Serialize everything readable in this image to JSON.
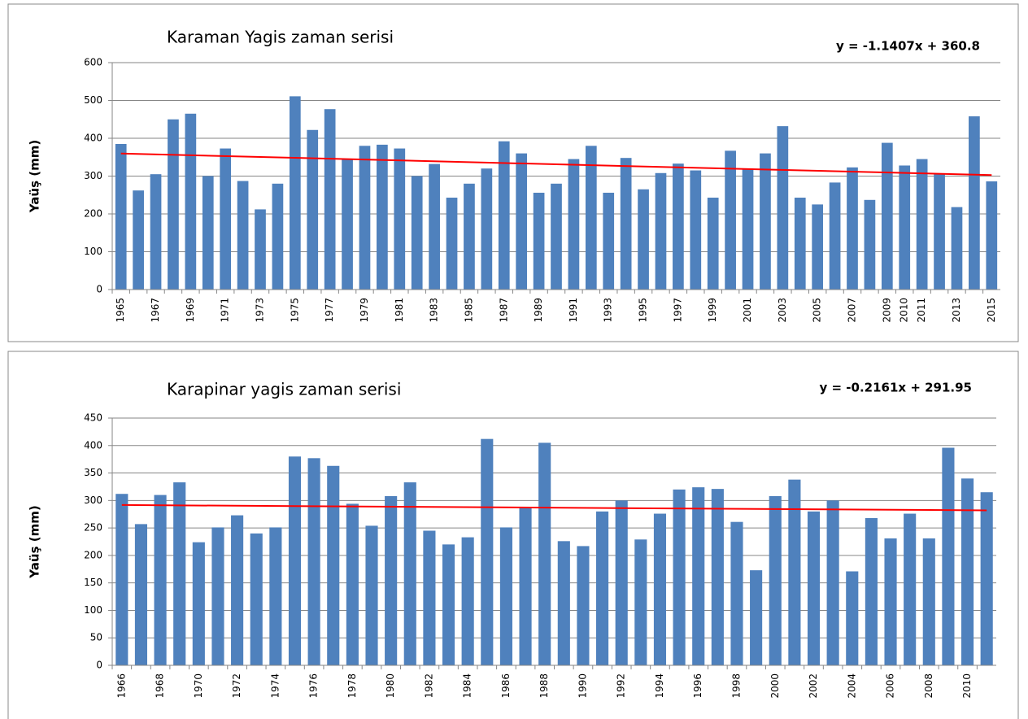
{
  "chart_data": [
    {
      "type": "bar",
      "title": "Karaman Yagis zaman serisi",
      "y_label": "Yaüş (mm)",
      "categories": [
        "1965",
        null,
        "1967",
        null,
        "1969",
        null,
        "1971",
        null,
        "1973",
        null,
        "1975",
        null,
        "1977",
        null,
        "1979",
        null,
        "1981",
        null,
        "1983",
        null,
        "1985",
        null,
        "1987",
        null,
        "1989",
        null,
        "1991",
        null,
        "1993",
        null,
        "1995",
        null,
        "1997",
        null,
        "1999",
        null,
        "2001",
        null,
        "2003",
        null,
        "2005",
        null,
        "2007",
        null,
        "2009",
        "2010",
        "2011",
        null,
        "2013",
        null,
        "2015"
      ],
      "values": [
        385,
        262,
        305,
        450,
        465,
        300,
        373,
        287,
        212,
        280,
        511,
        422,
        477,
        345,
        380,
        383,
        373,
        300,
        332,
        243,
        280,
        320,
        392,
        360,
        256,
        280,
        345,
        380,
        256,
        348,
        265,
        308,
        333,
        315,
        243,
        367,
        320,
        360,
        432,
        243,
        225,
        283,
        323,
        237,
        388,
        328,
        345,
        305,
        218,
        458,
        286
      ],
      "color": "#4f81bd",
      "ylim": [
        0,
        600
      ],
      "yticks": [
        0,
        100,
        200,
        300,
        400,
        500,
        600
      ],
      "grid": true,
      "trendline": {
        "label": "y = -1.1407x + 360.8",
        "slope": -1.1407,
        "intercept": 360.8,
        "color": "#ff0000"
      }
    },
    {
      "type": "bar",
      "title": "Karapinar yagis zaman serisi",
      "y_label": "Yaüş (mm)",
      "categories": [
        "1966",
        null,
        "1968",
        null,
        "1970",
        null,
        "1972",
        null,
        "1974",
        null,
        "1976",
        null,
        "1978",
        null,
        "1980",
        null,
        "1982",
        null,
        "1984",
        null,
        "1986",
        null,
        "1988",
        null,
        "1990",
        null,
        "1992",
        null,
        "1994",
        null,
        "1996",
        null,
        "1998",
        null,
        "2000",
        null,
        "2002",
        null,
        "2004",
        null,
        "2006",
        null,
        "2008",
        null,
        "2010",
        null
      ],
      "values": [
        312,
        257,
        310,
        333,
        224,
        251,
        273,
        240,
        251,
        380,
        377,
        363,
        294,
        254,
        308,
        333,
        245,
        220,
        233,
        412,
        251,
        287,
        405,
        226,
        217,
        280,
        300,
        229,
        276,
        320,
        324,
        321,
        261,
        173,
        308,
        338,
        280,
        300,
        171,
        268,
        231,
        276,
        231,
        396,
        340,
        315
      ],
      "color": "#4f81bd",
      "ylim": [
        0,
        450
      ],
      "yticks": [
        0,
        50,
        100,
        150,
        200,
        250,
        300,
        350,
        400,
        450
      ],
      "grid": true,
      "trendline": {
        "label": "y = -0.2161x + 291.95",
        "slope": -0.2161,
        "intercept": 291.95,
        "color": "#ff0000"
      }
    }
  ]
}
